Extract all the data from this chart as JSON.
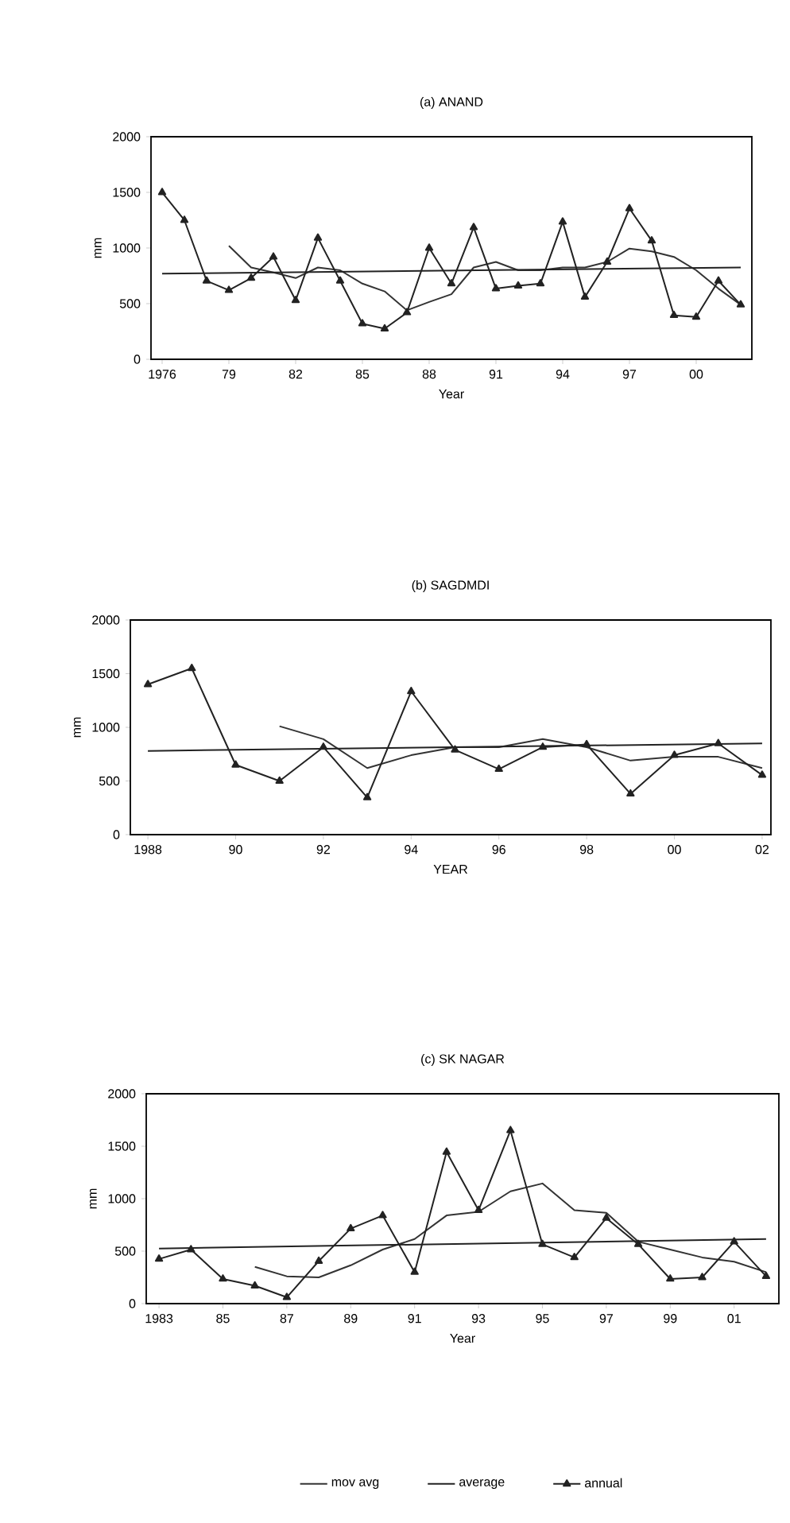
{
  "chart_data": [
    {
      "type": "line",
      "title": "(a) ANAND",
      "xlabel": "Year",
      "ylabel": "mm",
      "xlim": [
        1975.5,
        2002.5
      ],
      "ylim": [
        0,
        2000
      ],
      "yticks": [
        0,
        500,
        1000,
        1500,
        2000
      ],
      "xticks": [
        1976,
        {
          "value": 1979,
          "label": "79"
        },
        {
          "value": 1982,
          "label": "82"
        },
        {
          "value": 1985,
          "label": "85"
        },
        {
          "value": 1988,
          "label": "88"
        },
        {
          "value": 1991,
          "label": "91"
        },
        {
          "value": 1994,
          "label": "94"
        },
        {
          "value": 1997,
          "label": "97"
        },
        {
          "value": 2000,
          "label": "00"
        }
      ],
      "series": [
        {
          "color": "#333333",
          "marker": "none",
          "x": [
            1979,
            1980,
            1981,
            1982,
            1983,
            1984,
            1985,
            1986,
            1987,
            1988,
            1989,
            1990,
            1991,
            1992,
            1993,
            1994,
            1995,
            1996,
            1997,
            1998,
            1999,
            2000,
            2001,
            2002
          ],
          "values": [
            1020,
            825,
            780,
            730,
            825,
            800,
            680,
            610,
            440,
            515,
            585,
            825,
            875,
            800,
            800,
            825,
            825,
            875,
            995,
            970,
            920,
            800,
            635,
            490
          ]
        },
        {
          "color": "#222222",
          "marker": "none",
          "x": [
            1976,
            2002
          ],
          "values": [
            770,
            825
          ]
        },
        {
          "color": "#222222",
          "marker": "triangle",
          "x": [
            1976,
            1977,
            1978,
            1979,
            1980,
            1981,
            1982,
            1983,
            1984,
            1985,
            1986,
            1987,
            1988,
            1989,
            1990,
            1991,
            1992,
            1993,
            1994,
            1995,
            1996,
            1997,
            1998,
            1999,
            2000,
            2001,
            2002
          ],
          "values": [
            1500,
            1250,
            705,
            620,
            730,
            920,
            530,
            1090,
            705,
            320,
            275,
            420,
            1000,
            680,
            1185,
            635,
            660,
            680,
            1235,
            560,
            875,
            1355,
            1065,
            395,
            380,
            705,
            490
          ]
        }
      ]
    },
    {
      "type": "line",
      "title": "(b) SAGDMDI",
      "xlabel": "YEAR",
      "ylabel": "mm",
      "xlim": [
        1987.6,
        2002.2
      ],
      "ylim": [
        0,
        2000
      ],
      "yticks": [
        0,
        500,
        1000,
        1500,
        2000
      ],
      "xticks": [
        1988,
        {
          "value": 1990,
          "label": "90"
        },
        {
          "value": 1992,
          "label": "92"
        },
        {
          "value": 1994,
          "label": "94"
        },
        {
          "value": 1996,
          "label": "96"
        },
        {
          "value": 1998,
          "label": "98"
        },
        {
          "value": 2000,
          "label": "00"
        },
        {
          "value": 2002,
          "label": "02"
        }
      ],
      "series": [
        {
          "color": "#333333",
          "marker": "none",
          "x": [
            1991,
            1992,
            1993,
            1994,
            1995,
            1996,
            1997,
            1998,
            1999,
            2000,
            2001,
            2002
          ],
          "values": [
            1010,
            890,
            620,
            740,
            815,
            815,
            890,
            815,
            690,
            725,
            725,
            620
          ]
        },
        {
          "color": "#222222",
          "marker": "none",
          "x": [
            1988,
            2002
          ],
          "values": [
            780,
            850
          ]
        },
        {
          "color": "#222222",
          "marker": "triangle",
          "x": [
            1988,
            1989,
            1990,
            1991,
            1992,
            1993,
            1994,
            1995,
            1996,
            1997,
            1998,
            1999,
            2000,
            2001,
            2002
          ],
          "values": [
            1400,
            1550,
            650,
            500,
            815,
            345,
            1335,
            790,
            610,
            815,
            840,
            380,
            740,
            850,
            555
          ]
        }
      ]
    },
    {
      "type": "line",
      "title": "(c) SK NAGAR",
      "xlabel": "Year",
      "ylabel": "mm",
      "xlim": [
        1982.6,
        2002.4
      ],
      "ylim": [
        0,
        2000
      ],
      "yticks": [
        0,
        500,
        1000,
        1500,
        2000
      ],
      "legend": "bottom",
      "xticks": [
        1983,
        {
          "value": 1985,
          "label": "85"
        },
        {
          "value": 1987,
          "label": "87"
        },
        {
          "value": 1989,
          "label": "89"
        },
        {
          "value": 1991,
          "label": "91"
        },
        {
          "value": 1993,
          "label": "93"
        },
        {
          "value": 1995,
          "label": "95"
        },
        {
          "value": 1997,
          "label": "97"
        },
        {
          "value": 1999,
          "label": "99"
        },
        {
          "value": 2001,
          "label": "01"
        }
      ],
      "series": [
        {
          "name": "mov avg",
          "color": "#333333",
          "marker": "none",
          "x": [
            1986,
            1987,
            1988,
            1989,
            1990,
            1991,
            1992,
            1993,
            1994,
            1995,
            1996,
            1997,
            1998,
            1999,
            2000,
            2001,
            2002
          ],
          "values": [
            350,
            260,
            250,
            365,
            515,
            615,
            840,
            875,
            1070,
            1145,
            890,
            865,
            590,
            515,
            440,
            400,
            300
          ]
        },
        {
          "name": "average",
          "color": "#222222",
          "marker": "none",
          "x": [
            1983,
            2002
          ],
          "values": [
            525,
            615
          ]
        },
        {
          "name": "annual",
          "color": "#222222",
          "marker": "triangle",
          "x": [
            1983,
            1984,
            1985,
            1986,
            1987,
            1988,
            1989,
            1990,
            1991,
            1992,
            1993,
            1994,
            1995,
            1996,
            1997,
            1998,
            1999,
            2000,
            2001,
            2002
          ],
          "values": [
            425,
            515,
            235,
            170,
            60,
            405,
            715,
            840,
            300,
            1445,
            890,
            1650,
            565,
            440,
            815,
            565,
            235,
            250,
            590,
            260
          ]
        }
      ]
    }
  ]
}
